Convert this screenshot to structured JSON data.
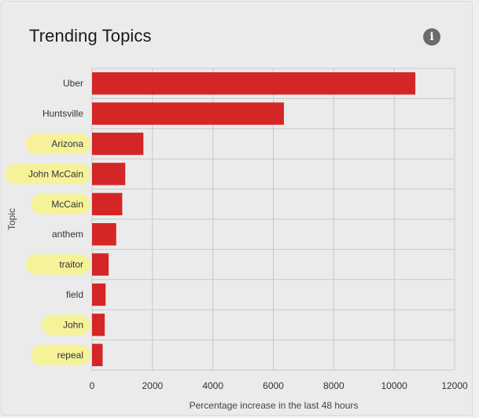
{
  "widget": {
    "title": "Trending Topics",
    "info_icon_name": "info-icon"
  },
  "colors": {
    "bar": "#d42626",
    "highlight": "#f6f29a",
    "grid": "#c9c9c9"
  },
  "chart_data": {
    "type": "bar",
    "orientation": "horizontal",
    "title": "Trending Topics",
    "xlabel": "Percentage increase in the last 48 hours",
    "ylabel": "Topic",
    "categories": [
      "Uber",
      "Huntsville",
      "Arizona",
      "John McCain",
      "McCain",
      "anthem",
      "traitor",
      "field",
      "John",
      "repeal"
    ],
    "values": [
      10700,
      6350,
      1700,
      1100,
      1000,
      800,
      550,
      450,
      420,
      350
    ],
    "highlighted": [
      false,
      false,
      true,
      true,
      true,
      false,
      true,
      false,
      true,
      true
    ],
    "xlim": [
      0,
      12000
    ],
    "xticks": [
      0,
      2000,
      4000,
      6000,
      8000,
      10000,
      12000
    ],
    "grid": true,
    "legend": "none"
  }
}
